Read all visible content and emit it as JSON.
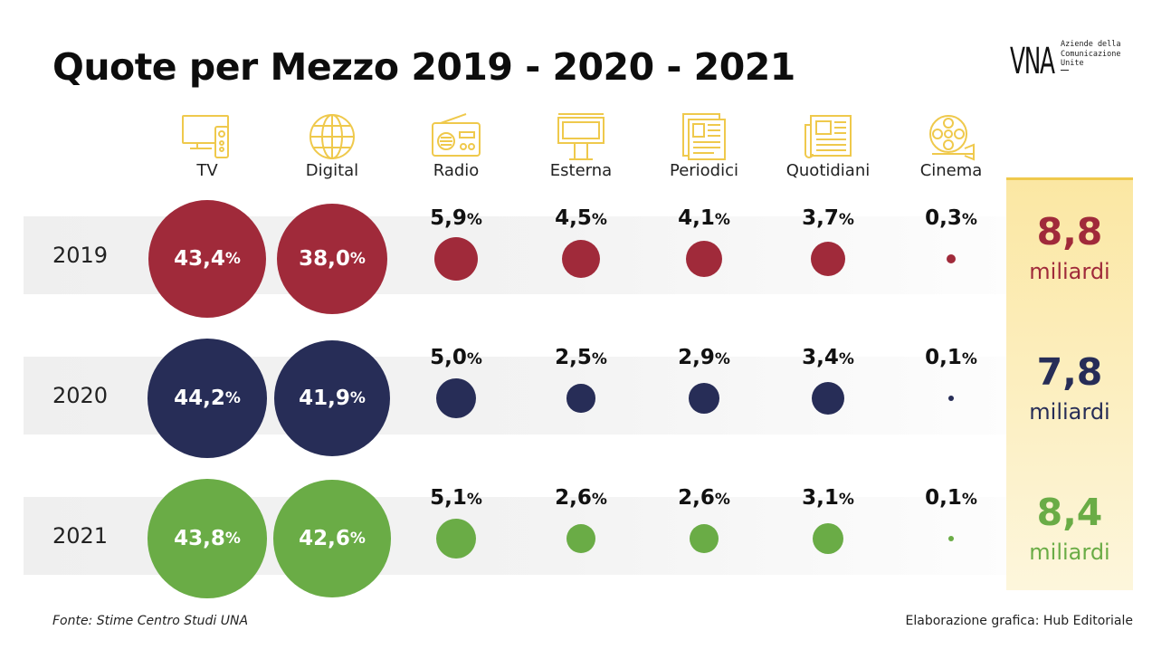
{
  "title": "Quote per Mezzo 2019 - 2020 - 2021",
  "logo": {
    "mark": "VNA",
    "lines": [
      "Aziende della",
      "Comunicazione",
      "Unite"
    ]
  },
  "colors": {
    "2019": "#a02a3a",
    "2020": "#272d57",
    "2021": "#6aac46",
    "accent": "#efc94c"
  },
  "chart_data": {
    "type": "bubble",
    "categories": [
      "TV",
      "Digital",
      "Radio",
      "Esterna",
      "Periodici",
      "Quotidiani",
      "Cinema"
    ],
    "icons": [
      "tv-icon",
      "globe-icon",
      "radio-icon",
      "billboard-icon",
      "magazine-icon",
      "newspaper-icon",
      "film-reel-icon"
    ],
    "unit": "%",
    "series": [
      {
        "name": "2019",
        "values": [
          43.4,
          38.0,
          5.9,
          4.5,
          4.1,
          3.7,
          0.3
        ],
        "labels": [
          "43,4",
          "38,0",
          "5,9",
          "4,5",
          "4,1",
          "3,7",
          "0,3"
        ],
        "total": "8,8",
        "total_unit": "miliardi"
      },
      {
        "name": "2020",
        "values": [
          44.2,
          41.9,
          5.0,
          2.5,
          2.9,
          3.4,
          0.1
        ],
        "labels": [
          "44,2",
          "41,9",
          "5,0",
          "2,5",
          "2,9",
          "3,4",
          "0,1"
        ],
        "total": "7,8",
        "total_unit": "miliardi"
      },
      {
        "name": "2021",
        "values": [
          43.8,
          42.6,
          5.1,
          2.6,
          2.6,
          3.1,
          0.1
        ],
        "labels": [
          "43,8",
          "42,6",
          "5,1",
          "2,6",
          "2,6",
          "3,1",
          "0,1"
        ],
        "total": "8,4",
        "total_unit": "miliardi"
      }
    ]
  },
  "footer": {
    "source": "Fonte: Stime Centro Studi UNA",
    "credit": "Elaborazione grafica: Hub Editoriale"
  }
}
